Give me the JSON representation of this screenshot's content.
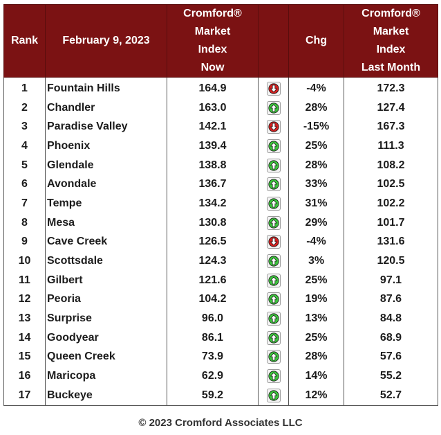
{
  "headers": {
    "rank": "Rank",
    "date": "February 9, 2023",
    "index_now": [
      "Cromford®",
      "Market",
      "Index",
      "Now"
    ],
    "arrow": "",
    "chg": "Chg",
    "index_last": [
      "Cromford®",
      "Market",
      "Index",
      "Last Month"
    ]
  },
  "rows": [
    {
      "rank": "1",
      "city": "Fountain Hills",
      "now": "164.9",
      "dir": "down",
      "chg": "-4%",
      "last": "172.3"
    },
    {
      "rank": "2",
      "city": "Chandler",
      "now": "163.0",
      "dir": "up",
      "chg": "28%",
      "last": "127.4"
    },
    {
      "rank": "3",
      "city": "Paradise Valley",
      "now": "142.1",
      "dir": "down",
      "chg": "-15%",
      "last": "167.3"
    },
    {
      "rank": "4",
      "city": "Phoenix",
      "now": "139.4",
      "dir": "up",
      "chg": "25%",
      "last": "111.3"
    },
    {
      "rank": "5",
      "city": "Glendale",
      "now": "138.8",
      "dir": "up",
      "chg": "28%",
      "last": "108.2"
    },
    {
      "rank": "6",
      "city": "Avondale",
      "now": "136.7",
      "dir": "up",
      "chg": "33%",
      "last": "102.5"
    },
    {
      "rank": "7",
      "city": "Tempe",
      "now": "134.2",
      "dir": "up",
      "chg": "31%",
      "last": "102.2"
    },
    {
      "rank": "8",
      "city": "Mesa",
      "now": "130.8",
      "dir": "up",
      "chg": "29%",
      "last": "101.7"
    },
    {
      "rank": "9",
      "city": "Cave Creek",
      "now": "126.5",
      "dir": "down",
      "chg": "-4%",
      "last": "131.6"
    },
    {
      "rank": "10",
      "city": "Scottsdale",
      "now": "124.3",
      "dir": "up",
      "chg": "3%",
      "last": "120.5"
    },
    {
      "rank": "11",
      "city": "Gilbert",
      "now": "121.6",
      "dir": "up",
      "chg": "25%",
      "last": "97.1"
    },
    {
      "rank": "12",
      "city": "Peoria",
      "now": "104.2",
      "dir": "up",
      "chg": "19%",
      "last": "87.6"
    },
    {
      "rank": "13",
      "city": "Surprise",
      "now": "96.0",
      "dir": "up",
      "chg": "13%",
      "last": "84.8"
    },
    {
      "rank": "14",
      "city": "Goodyear",
      "now": "86.1",
      "dir": "up",
      "chg": "25%",
      "last": "68.9"
    },
    {
      "rank": "15",
      "city": "Queen Creek",
      "now": "73.9",
      "dir": "up",
      "chg": "28%",
      "last": "57.6"
    },
    {
      "rank": "16",
      "city": "Maricopa",
      "now": "62.9",
      "dir": "up",
      "chg": "14%",
      "last": "55.2"
    },
    {
      "rank": "17",
      "city": "Buckeye",
      "now": "59.2",
      "dir": "up",
      "chg": "12%",
      "last": "52.7"
    }
  ],
  "colors": {
    "header_bg": "#7b1213",
    "up": "#3cc43c",
    "down": "#d42020"
  },
  "icons": {
    "up": "up-arrow-icon",
    "down": "down-arrow-icon"
  },
  "footer": "© 2023 Cromford Associates LLC"
}
